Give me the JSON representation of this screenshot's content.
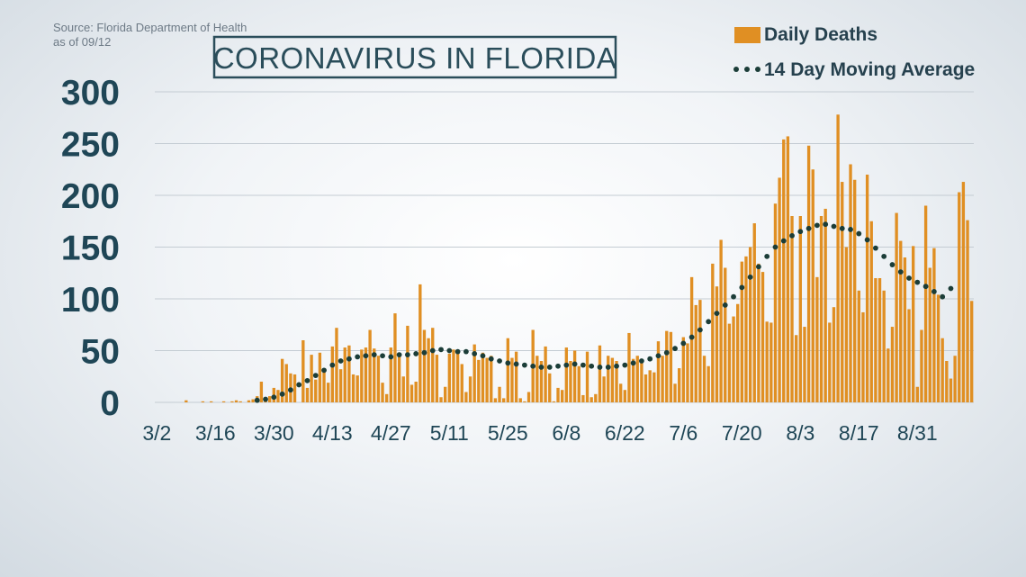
{
  "source": "Source: Florida Department of Health",
  "as_of": "as of 09/12",
  "colors": {
    "bar": "#e08f23",
    "avg": "#1b3d38",
    "title": "#2a4d5a",
    "axis_text": "#1f4656"
  },
  "chart_data": {
    "type": "bar",
    "title": "CORONAVIRUS IN FLORIDA",
    "xlabel": "",
    "ylabel": "",
    "ylim": [
      0,
      300
    ],
    "yticks": [
      0,
      50,
      100,
      150,
      200,
      250,
      300
    ],
    "grid": true,
    "legend_position": "top-right",
    "start_date": "3/2",
    "xtick_labels": [
      "3/2",
      "3/16",
      "3/30",
      "4/13",
      "4/27",
      "5/11",
      "5/25",
      "6/8",
      "6/22",
      "7/6",
      "7/20",
      "8/3",
      "8/17",
      "8/31"
    ],
    "series": [
      {
        "name": "Daily Deaths",
        "kind": "bar",
        "values": [
          0,
          0,
          0,
          0,
          0,
          0,
          0,
          2,
          0,
          0,
          0,
          1,
          0,
          1,
          0,
          0,
          1,
          0,
          1,
          2,
          1,
          0,
          2,
          3,
          6,
          20,
          5,
          6,
          14,
          12,
          42,
          37,
          28,
          27,
          0,
          60,
          14,
          46,
          22,
          48,
          29,
          19,
          54,
          72,
          32,
          53,
          55,
          27,
          26,
          51,
          53,
          70,
          52,
          45,
          19,
          8,
          53,
          86,
          48,
          25,
          74,
          17,
          20,
          114,
          70,
          62,
          72,
          46,
          5,
          15,
          47,
          51,
          47,
          37,
          10,
          25,
          56,
          41,
          48,
          43,
          45,
          4,
          15,
          4,
          62,
          43,
          49,
          4,
          1,
          10,
          70,
          45,
          40,
          54,
          28,
          1,
          14,
          12,
          53,
          40,
          50,
          35,
          7,
          49,
          5,
          8,
          55,
          25,
          45,
          43,
          40,
          18,
          12,
          67,
          42,
          45,
          42,
          27,
          31,
          29,
          59,
          45,
          69,
          68,
          18,
          33,
          63,
          57,
          121,
          94,
          99,
          45,
          35,
          134,
          112,
          157,
          130,
          76,
          83,
          95,
          136,
          141,
          150,
          173,
          134,
          126,
          78,
          77,
          192,
          217,
          254,
          257,
          180,
          65,
          180,
          73,
          248,
          225,
          121,
          180,
          187,
          77,
          92,
          278,
          213,
          150,
          230,
          215,
          108,
          87,
          220,
          175,
          120,
          120,
          108,
          52,
          73,
          183,
          156,
          140,
          90,
          151,
          15,
          70,
          190,
          130,
          149,
          104,
          62,
          40,
          23,
          45,
          203,
          213,
          176,
          98
        ]
      },
      {
        "name": "14 Day Moving Average",
        "kind": "dots",
        "values": [
          null,
          null,
          null,
          null,
          null,
          null,
          null,
          null,
          null,
          null,
          null,
          null,
          null,
          null,
          null,
          null,
          null,
          null,
          null,
          null,
          null,
          null,
          null,
          null,
          2,
          null,
          3,
          null,
          5,
          null,
          8,
          null,
          12,
          null,
          17,
          null,
          21,
          null,
          26,
          null,
          31,
          null,
          36,
          null,
          40,
          null,
          42,
          null,
          44,
          null,
          45,
          null,
          46,
          null,
          45,
          null,
          44,
          null,
          46,
          null,
          46,
          null,
          47,
          null,
          48,
          null,
          50,
          null,
          51,
          null,
          50,
          null,
          49,
          null,
          49,
          null,
          47,
          null,
          45,
          null,
          42,
          null,
          40,
          null,
          38,
          null,
          37,
          null,
          36,
          null,
          35,
          null,
          34,
          null,
          34,
          null,
          35,
          null,
          36,
          null,
          37,
          null,
          36,
          null,
          35,
          null,
          34,
          null,
          34,
          null,
          35,
          null,
          36,
          null,
          38,
          null,
          40,
          null,
          42,
          null,
          45,
          null,
          48,
          null,
          52,
          null,
          57,
          null,
          63,
          null,
          70,
          null,
          78,
          null,
          86,
          null,
          94,
          null,
          102,
          null,
          111,
          null,
          121,
          null,
          131,
          null,
          141,
          null,
          150,
          null,
          156,
          null,
          161,
          null,
          165,
          null,
          168,
          null,
          171,
          null,
          172,
          null,
          170,
          null,
          168,
          null,
          167,
          null,
          163,
          null,
          157,
          null,
          149,
          null,
          141,
          null,
          133,
          null,
          126,
          null,
          120,
          null,
          116,
          null,
          112,
          null,
          107,
          null,
          102,
          null,
          110
        ]
      }
    ]
  }
}
